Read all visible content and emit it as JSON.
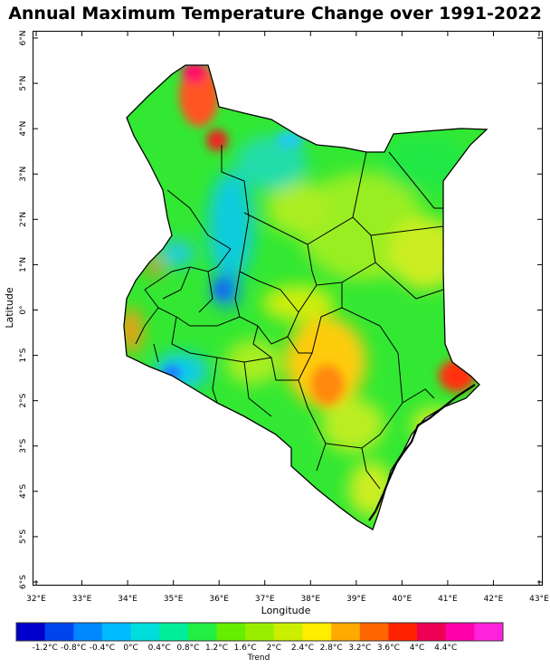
{
  "title": "Annual Maximum Temperature Change over 1991-2022",
  "map": {
    "x_axis_title": "Longitude",
    "y_axis_title": "Latitude",
    "lon_ticks": [
      "32°E",
      "33°E",
      "34°E",
      "35°E",
      "36°E",
      "37°E",
      "38°E",
      "39°E",
      "40°E",
      "41°E",
      "42°E",
      "43°E"
    ],
    "lat_ticks": [
      "6°N",
      "5°N",
      "4°N",
      "3°N",
      "2°N",
      "1°N",
      "0°",
      "1°S",
      "2°S",
      "3°S",
      "4°S",
      "5°S",
      "6°S"
    ],
    "lon_range": [
      32,
      43
    ],
    "lat_range": [
      -6,
      6
    ],
    "hotspots": [
      {
        "name": "northwest",
        "color": "#ee2222"
      },
      {
        "name": "coast",
        "color": "#ff3300"
      },
      {
        "name": "southeast-interior",
        "color": "#ff8800"
      },
      {
        "name": "west",
        "color": "#ff6600"
      }
    ],
    "coldspots": [
      {
        "name": "central-rift",
        "color": "#00aaff"
      },
      {
        "name": "southwest",
        "color": "#2288ff"
      }
    ]
  },
  "colorbar": {
    "title": "Trend",
    "labels": [
      "-1.2°C",
      "-0.8°C",
      "-0.4°C",
      "0°C",
      "0.4°C",
      "0.8°C",
      "1.2°C",
      "1.6°C",
      "2°C",
      "2.4°C",
      "2.8°C",
      "3.2°C",
      "3.6°C",
      "4°C",
      "4.4°C"
    ],
    "colors": [
      "#0000cc",
      "#0044ee",
      "#0088ff",
      "#00bbff",
      "#00dddd",
      "#00ee99",
      "#22ee44",
      "#66ee00",
      "#99ee00",
      "#ccee00",
      "#ffee00",
      "#ffaa00",
      "#ff6600",
      "#ff2200",
      "#ee0055",
      "#ff00aa",
      "#ff22dd"
    ]
  }
}
